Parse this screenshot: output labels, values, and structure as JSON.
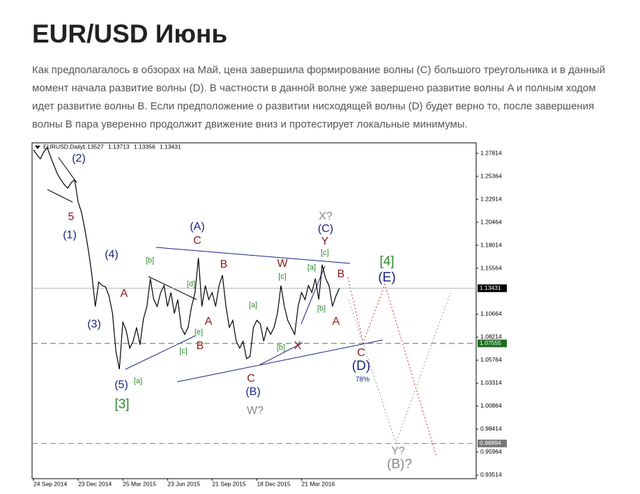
{
  "title": "EUR/USD Июнь",
  "paragraph": "Как предполагалось в обзорах на Май, цена завершила формирование волны (C) большого треугольника и в данный момент начала развитие волны (D). В частности в данной волне уже завершено развитие волны A и полным ходом идет развитие волны B. Если предположение о развитии нисходящей волны (D) будет верно то, после завершения волны B пара уверенно продолжит движение вниз и протестирует локальные минимумы.",
  "chart_data": {
    "type": "line",
    "symbol": "EURUSD,Daily",
    "ohlc": [
      1.13527,
      1.13713,
      1.13356,
      1.13431
    ],
    "color": "#000000",
    "values": [
      1.2819,
      1.2767,
      1.2722,
      1.2796,
      1.2841,
      1.2744,
      1.2648,
      1.2559,
      1.2499,
      1.2447,
      1.241,
      1.247,
      1.2499,
      1.2262,
      1.2151,
      1.1965,
      1.1743,
      1.1483,
      1.1149,
      1.1409,
      1.1372,
      1.1357,
      1.126,
      1.1075,
      1.0667,
      1.0481,
      1.0986,
      1.0889,
      1.0704,
      1.0778,
      1.0926,
      1.0741,
      1.1015,
      1.1149,
      1.1446,
      1.1223,
      1.1149,
      1.1297,
      1.1372,
      1.1149,
      1.1297,
      1.1075,
      1.1223,
      1.0926,
      1.0852,
      1.0926,
      1.1149,
      1.1297,
      1.1668,
      1.1149,
      1.1372,
      1.1223,
      1.1297,
      1.1149,
      1.1372,
      1.1483,
      1.1149,
      1.0926,
      1.1001,
      1.0778,
      1.0704,
      1.0778,
      1.0593,
      1.0615,
      1.0926,
      1.1001,
      1.0963,
      1.0778,
      1.0926,
      1.0852,
      1.0926,
      1.1075,
      1.1372,
      1.1149,
      1.1001,
      1.0926,
      1.0852,
      1.1149,
      1.1297,
      1.1223,
      1.1372,
      1.1297,
      1.1446,
      1.1223,
      1.1594,
      1.1446,
      1.1372,
      1.1149,
      1.126,
      1.1343
    ],
    "xlim": [
      -0.4,
      128.8
    ],
    "xticks": [
      {
        "value": 0,
        "label": "24 Sep 2014"
      },
      {
        "value": 13,
        "label": "23 Dec 2014"
      },
      {
        "value": 26,
        "label": "25 Mar 2015"
      },
      {
        "value": 39,
        "label": "23 Jun 2015"
      },
      {
        "value": 52,
        "label": "21 Sep 2015"
      },
      {
        "value": 65,
        "label": "18 Dec 2015"
      },
      {
        "value": 78,
        "label": "21 Mar 2016"
      }
    ],
    "ylim": [
      0.9314,
      1.2893
    ],
    "yticks": [
      1.27814,
      1.25364,
      1.22914,
      1.20464,
      1.18014,
      1.15564,
      1.10664,
      1.08214,
      1.05764,
      1.03314,
      1.00864,
      0.98414,
      0.95964,
      0.93514
    ],
    "levels": [
      {
        "value": 1.13431,
        "color": "#b0b0b0",
        "box": "#000000",
        "dash": "none"
      },
      {
        "value": 1.07555,
        "color": "#2e8b2e",
        "box": "#1e6e1e",
        "dash": "8 5"
      },
      {
        "value": 0.96894,
        "color": "#888888",
        "box": "#777777",
        "dash": "8 5"
      }
    ],
    "annotations": [
      "(2)",
      "5",
      "(1)",
      "(4)",
      "A",
      "(3)",
      "(5)",
      "[3]",
      "[a]",
      "[b]",
      "[d]",
      "[e]",
      "[c]",
      "B",
      "A",
      "(A)",
      "C",
      "B",
      "[a]",
      "[b]",
      "C",
      "(B)",
      "W?",
      "W",
      "[c]",
      "X",
      "[a]",
      "[b]",
      "X?",
      "(C)",
      "Y",
      "[c]",
      "B",
      "A",
      "[4]",
      "(E)",
      "C",
      "(D)",
      "78%",
      "Y?",
      "(B)?"
    ]
  }
}
